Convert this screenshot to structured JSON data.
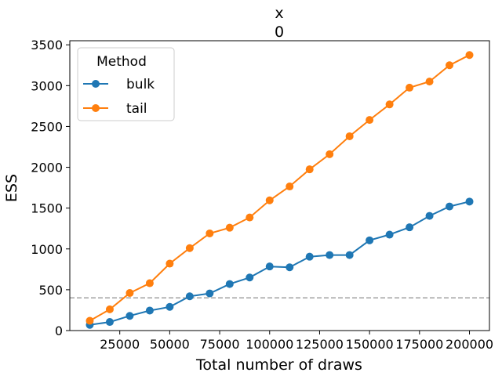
{
  "chart_data": {
    "type": "line",
    "title": "x",
    "subtitle": "0",
    "xlabel": "Total number of draws",
    "ylabel": "ESS",
    "xlim": [
      0,
      210000
    ],
    "ylim": [
      0,
      3550
    ],
    "xticks": [
      25000,
      50000,
      75000,
      100000,
      125000,
      150000,
      175000,
      200000
    ],
    "xtick_labels": [
      "25000",
      "50000",
      "75000",
      "100000",
      "125000",
      "150000",
      "175000",
      "200000"
    ],
    "yticks": [
      0,
      500,
      1000,
      1500,
      2000,
      2500,
      3000,
      3500
    ],
    "ytick_labels": [
      "0",
      "500",
      "1000",
      "1500",
      "2000",
      "2500",
      "3000",
      "3500"
    ],
    "grid": false,
    "legend": {
      "title": "Method",
      "placement": "top-left"
    },
    "reference_line": {
      "y": 400,
      "style": "dashed",
      "color": "#a0a0a0"
    },
    "x": [
      10000,
      20000,
      30000,
      40000,
      50000,
      60000,
      70000,
      80000,
      90000,
      100000,
      110000,
      120000,
      130000,
      140000,
      150000,
      160000,
      170000,
      180000,
      190000,
      200000
    ],
    "series": [
      {
        "name": "bulk",
        "color": "#1f77b4",
        "values": [
          70,
          105,
          180,
          245,
          290,
          420,
          455,
          570,
          650,
          785,
          775,
          905,
          925,
          925,
          1105,
          1175,
          1265,
          1405,
          1520,
          1580
        ]
      },
      {
        "name": "tail",
        "color": "#ff7f0e",
        "values": [
          120,
          260,
          460,
          580,
          820,
          1010,
          1190,
          1260,
          1385,
          1595,
          1765,
          1975,
          2160,
          2380,
          2580,
          2770,
          2975,
          3050,
          3250,
          3375
        ]
      }
    ]
  }
}
